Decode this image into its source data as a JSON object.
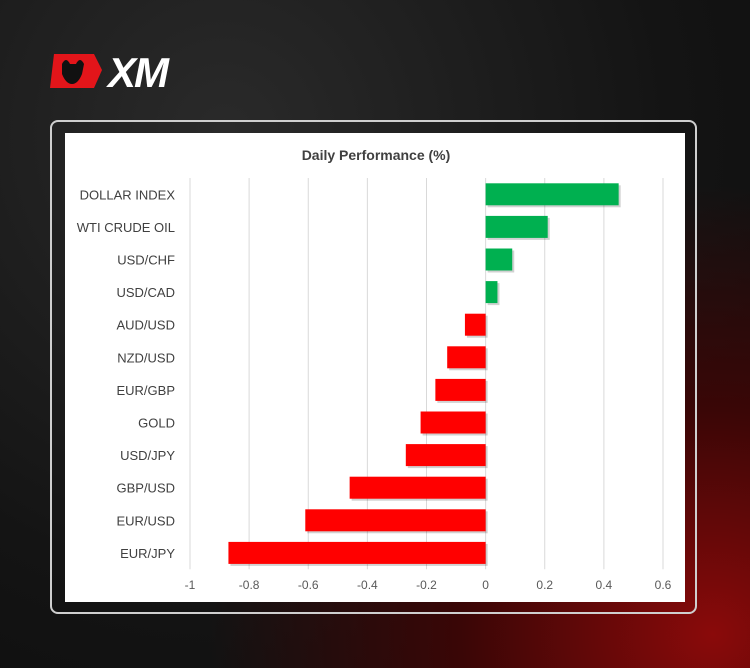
{
  "brand": {
    "logo_text": "XM",
    "colors": {
      "red": "#e3151a",
      "white": "#ffffff"
    }
  },
  "chart_data": {
    "type": "bar",
    "orientation": "horizontal",
    "title": "Daily Performance (%)",
    "categories": [
      "DOLLAR INDEX",
      "WTI CRUDE OIL",
      "USD/CHF",
      "USD/CAD",
      "AUD/USD",
      "NZD/USD",
      "EUR/GBP",
      "GOLD",
      "USD/JPY",
      "GBP/USD",
      "EUR/USD",
      "EUR/JPY"
    ],
    "values": [
      0.45,
      0.21,
      0.09,
      0.04,
      -0.07,
      -0.13,
      -0.17,
      -0.22,
      -0.27,
      -0.46,
      -0.61,
      -0.87
    ],
    "xlim": [
      -1,
      0.6
    ],
    "xticks": [
      "-1",
      "-0.8",
      "-0.6",
      "-0.4",
      "-0.2",
      "0",
      "0.2",
      "0.4",
      "0.6"
    ],
    "grid": true,
    "colors": {
      "positive": "#00b050",
      "negative": "#ff0000"
    }
  }
}
